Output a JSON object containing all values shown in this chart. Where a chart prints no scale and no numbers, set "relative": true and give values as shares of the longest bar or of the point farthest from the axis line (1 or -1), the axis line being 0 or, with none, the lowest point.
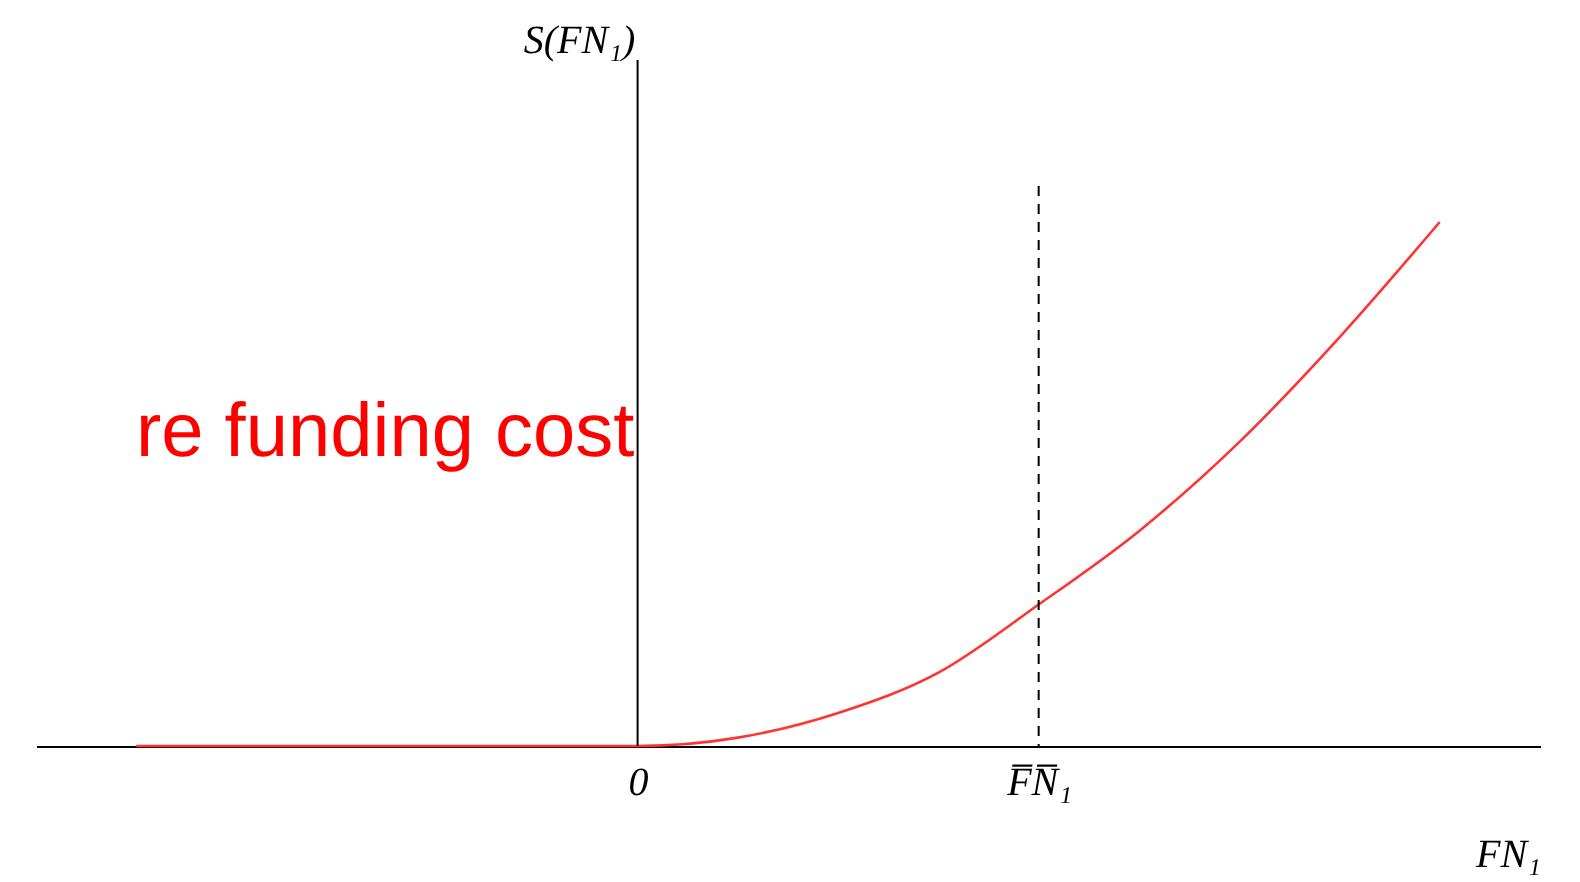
{
  "chart_data": {
    "type": "line",
    "relative": true,
    "xlabel": "FN₁",
    "ylabel": "S(FN₁)",
    "categories": [
      null,
      null,
      null,
      null,
      null,
      "0",
      null,
      null,
      null,
      "F̅N̅₁",
      null,
      null,
      null,
      null
    ],
    "series": [
      {
        "color": "#ff3333",
        "values": [
          0,
          0,
          0,
          0,
          0,
          0,
          0.016,
          0.063,
          0.14,
          0.27,
          0.41,
          0.58,
          0.78,
          1
        ]
      }
    ],
    "ref_lines": [
      {
        "axis": "x",
        "value": "0",
        "color": "#000000",
        "line_style": "solid"
      },
      {
        "axis": "x",
        "value": "F̅N̅₁",
        "color": "#000000",
        "line_style": "dashed"
      }
    ],
    "annotations": [
      "re funding cost"
    ]
  }
}
